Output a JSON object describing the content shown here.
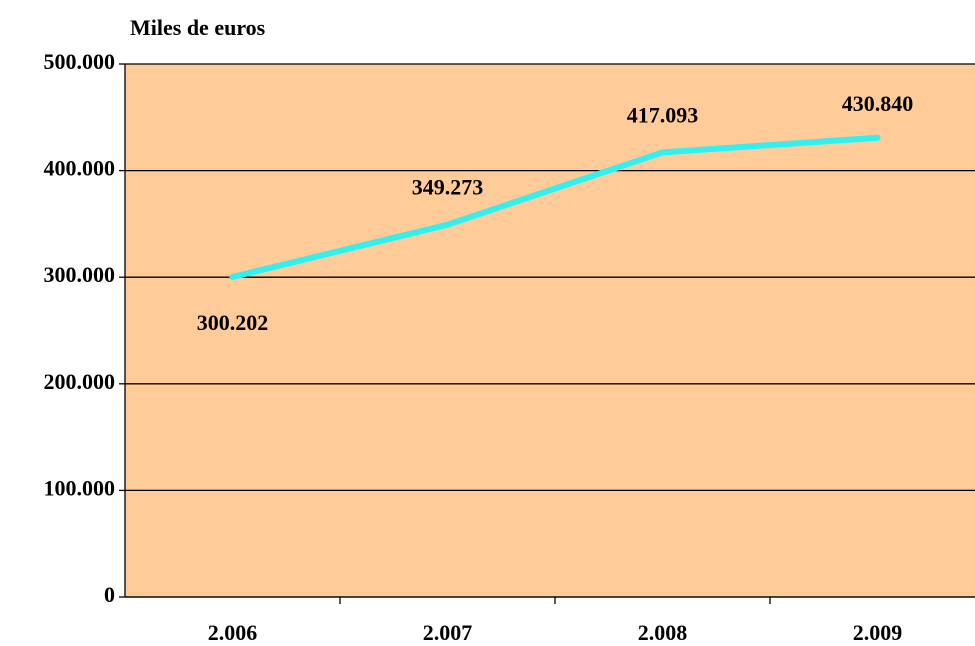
{
  "chart_data": {
    "type": "line",
    "y_axis_label": "Miles de euros",
    "categories": [
      "2.006",
      "2.007",
      "2.008",
      "2.009"
    ],
    "series": [
      {
        "name": null,
        "color": "#33F0F0",
        "values": [
          300202,
          349273,
          417093,
          430840
        ],
        "value_labels": [
          "300.202",
          "349.273",
          "417.093",
          "430.840"
        ]
      }
    ],
    "ylim": [
      0,
      500000
    ],
    "yticks": [
      0,
      {
        "value": 100000,
        "label": "100.000"
      },
      {
        "value": 200000,
        "label": "200.000"
      },
      {
        "value": 300000,
        "label": "300.000"
      },
      {
        "value": 400000,
        "label": "400.000"
      },
      {
        "value": 500000,
        "label": "500.000"
      }
    ],
    "grid": true,
    "plot_background": "#FFCC99"
  }
}
